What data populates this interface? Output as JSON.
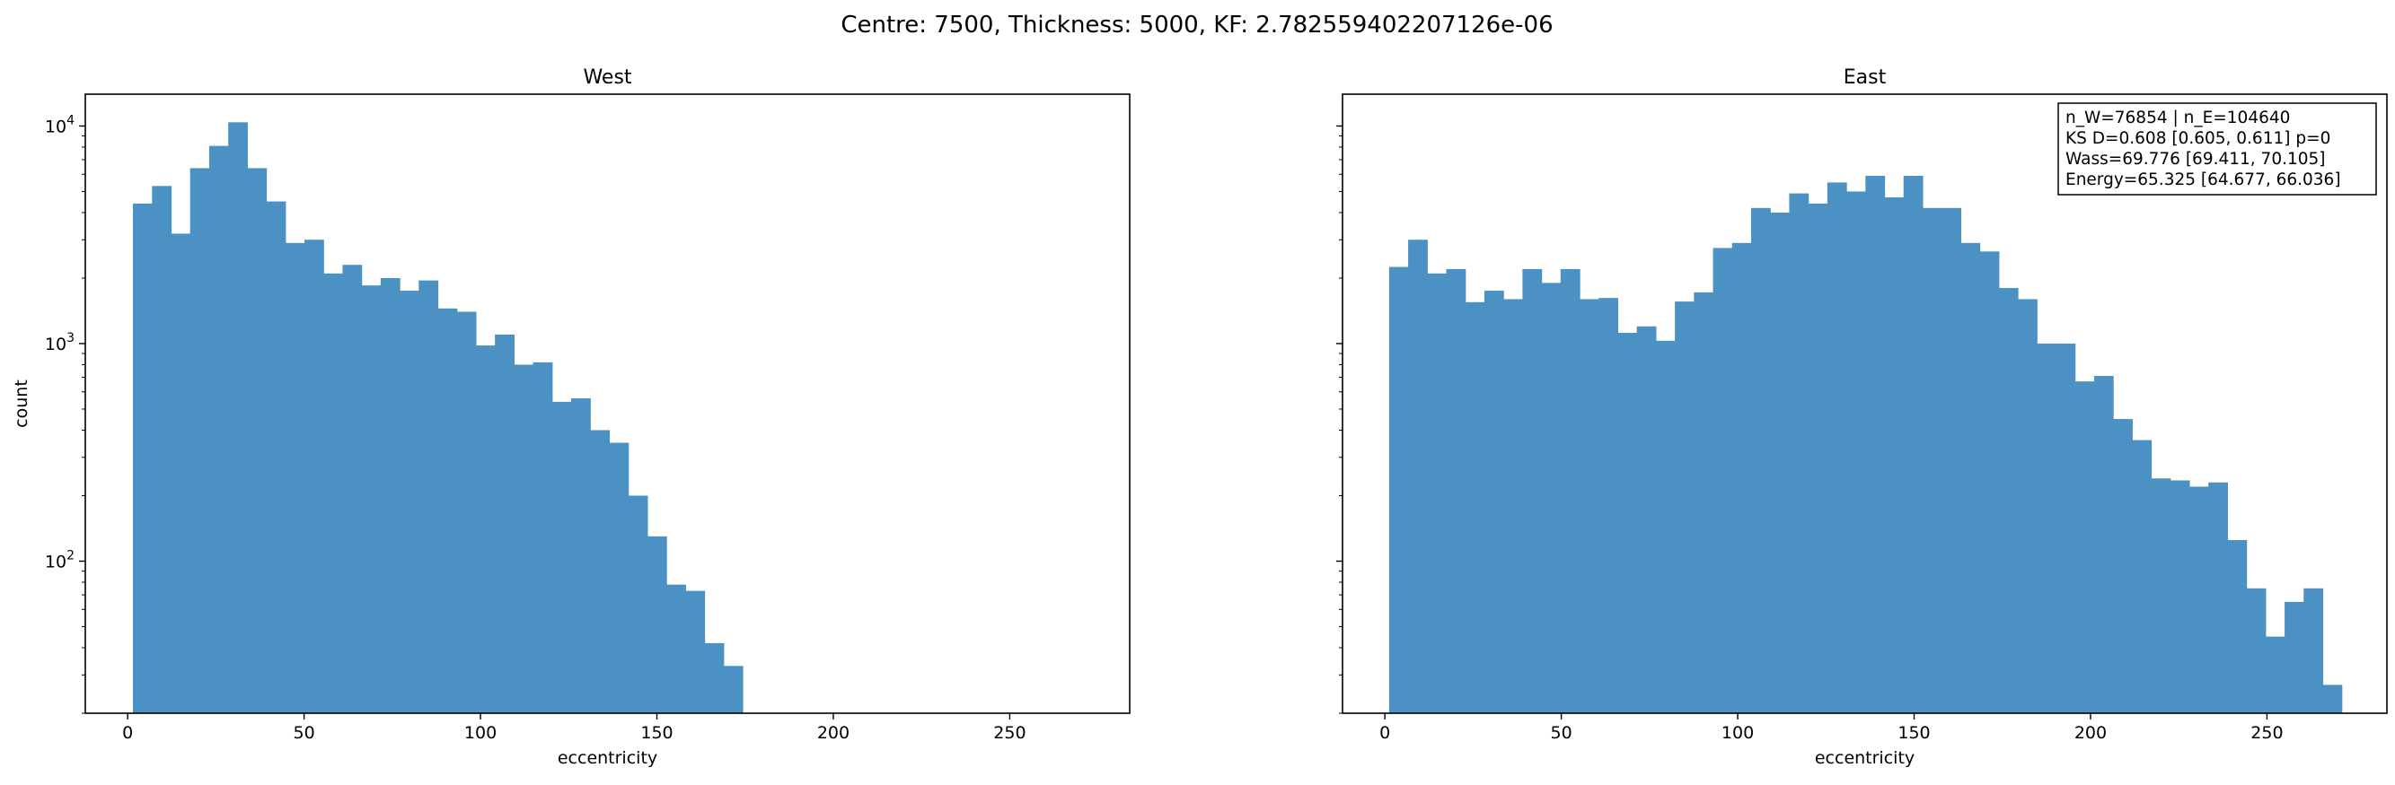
{
  "suptitle": "Centre: 7500, Thickness: 5000, KF: 2.782559402207126e-06",
  "chart_data": [
    {
      "type": "bar",
      "subtype": "histogram",
      "title": "West",
      "xlabel": "eccentricity",
      "ylabel": "count",
      "yscale": "log",
      "xlim": [
        -12,
        284
      ],
      "ylim": [
        20,
        14000
      ],
      "xticks": [
        0,
        50,
        100,
        150,
        200,
        250
      ],
      "xtick_labels": [
        "0",
        "50",
        "100",
        "150",
        "200",
        "250"
      ],
      "yticks": [
        100,
        1000,
        10000
      ],
      "ytick_labels": [
        "10^2",
        "10^3",
        "10^4"
      ],
      "bin_start": 1.5,
      "bin_width": 5.4,
      "values": [
        4400,
        5300,
        3200,
        6400,
        8100,
        10400,
        6400,
        4500,
        2900,
        3000,
        2100,
        2300,
        1850,
        2000,
        1750,
        1950,
        1450,
        1400,
        980,
        1100,
        800,
        820,
        540,
        560,
        400,
        350,
        200,
        130,
        78,
        73,
        42,
        33
      ],
      "color": "#4c91c3",
      "grid": false,
      "annotation": null
    },
    {
      "type": "bar",
      "subtype": "histogram",
      "title": "East",
      "xlabel": "eccentricity",
      "ylabel": "",
      "yscale": "log",
      "xlim": [
        -12,
        284
      ],
      "ylim": [
        20,
        14000
      ],
      "xticks": [
        0,
        50,
        100,
        150,
        200,
        250
      ],
      "xtick_labels": [
        "0",
        "50",
        "100",
        "150",
        "200",
        "250"
      ],
      "yticks": [
        100,
        1000,
        10000
      ],
      "ytick_labels": [
        "",
        "",
        ""
      ],
      "bin_start": 1.2,
      "bin_width": 5.4,
      "values": [
        2250,
        3000,
        2100,
        2200,
        1550,
        1750,
        1600,
        2200,
        1900,
        2200,
        1600,
        1620,
        1120,
        1200,
        1030,
        1560,
        1720,
        2750,
        2900,
        4200,
        4000,
        4900,
        4400,
        5500,
        5000,
        5900,
        4700,
        5900,
        4200,
        4200,
        2900,
        2650,
        1800,
        1600,
        1000,
        1000,
        670,
        710,
        450,
        360,
        240,
        235,
        220,
        230,
        125,
        75,
        45,
        65,
        75,
        27
      ],
      "color": "#4c91c3",
      "grid": false,
      "annotation": [
        "n_W=76854 | n_E=104640",
        "KS D=0.608 [0.605, 0.611]  p=0",
        "Wass=69.776 [69.411, 70.105]",
        "Energy=65.325 [64.677, 66.036]"
      ]
    }
  ]
}
